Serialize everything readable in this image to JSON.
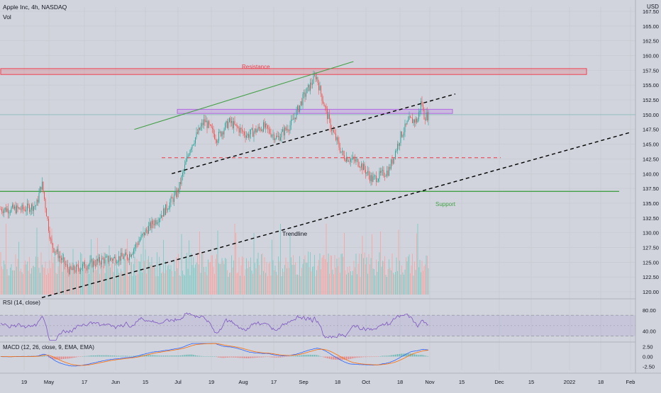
{
  "header": {
    "symbol": "Apple Inc, 4h, NASDAQ",
    "volume_label": "Vol",
    "currency": "USD"
  },
  "colors": {
    "background": "#d1d4dc",
    "up": "#26a69a",
    "down": "#ef5350",
    "volume_up": "#7fcbc4",
    "volume_down": "#f4a6a4",
    "resistance": "#f23645",
    "support": "#43a047",
    "purple_zone": "#b36ae2",
    "rsi_line": "#7e57c2",
    "macd_line": "#2962ff",
    "signal_line": "#ff6d00",
    "trendline": "#000000"
  },
  "annotations": {
    "resistance_label": "Resistance",
    "support_label": "Support",
    "trendline_label": "Trendline"
  },
  "rsi": {
    "label": "RSI (14, close)",
    "ticks": [
      "80.00",
      "40.00"
    ],
    "upper_band": 70,
    "lower_band": 30
  },
  "macd": {
    "label": "MACD (12, 26, close, 9, EMA, EMA)",
    "ticks": [
      "2.50",
      "0.00",
      "-2.50"
    ]
  },
  "chart_data": {
    "type": "candlestick",
    "symbol": "AAPL",
    "timeframe": "4h",
    "ylim": [
      119,
      168
    ],
    "y_ticks": [
      "167.50",
      "165.00",
      "162.50",
      "160.00",
      "157.50",
      "155.00",
      "152.50",
      "150.00",
      "147.50",
      "145.00",
      "142.50",
      "140.00",
      "137.50",
      "135.00",
      "132.50",
      "130.00",
      "127.50",
      "125.00",
      "122.50",
      "120.00"
    ],
    "x_ticks": [
      "19",
      "May",
      "17",
      "Jun",
      "15",
      "Jul",
      "19",
      "Aug",
      "17",
      "Sep",
      "18",
      "Oct",
      "18",
      "Nov",
      "15",
      "Dec",
      "15",
      "2022",
      "18",
      "Feb"
    ],
    "price_anchors": [
      {
        "date": "2021-04-19",
        "close": 134.0
      },
      {
        "date": "2021-04-26",
        "close": 134.7
      },
      {
        "date": "2021-04-29",
        "close": 138.5
      },
      {
        "date": "2021-05-04",
        "close": 128.0
      },
      {
        "date": "2021-05-12",
        "close": 123.5
      },
      {
        "date": "2021-05-19",
        "close": 124.5
      },
      {
        "date": "2021-05-26",
        "close": 125.3
      },
      {
        "date": "2021-06-07",
        "close": 126.0
      },
      {
        "date": "2021-06-16",
        "close": 130.5
      },
      {
        "date": "2021-06-24",
        "close": 133.5
      },
      {
        "date": "2021-07-01",
        "close": 137.0
      },
      {
        "date": "2021-07-07",
        "close": 144.5
      },
      {
        "date": "2021-07-14",
        "close": 149.0
      },
      {
        "date": "2021-07-20",
        "close": 146.0
      },
      {
        "date": "2021-07-26",
        "close": 148.8
      },
      {
        "date": "2021-08-04",
        "close": 146.5
      },
      {
        "date": "2021-08-12",
        "close": 148.0
      },
      {
        "date": "2021-08-19",
        "close": 146.0
      },
      {
        "date": "2021-08-26",
        "close": 148.5
      },
      {
        "date": "2021-09-01",
        "close": 153.0
      },
      {
        "date": "2021-09-07",
        "close": 156.7
      },
      {
        "date": "2021-09-09",
        "close": 154.0
      },
      {
        "date": "2021-09-14",
        "close": 148.0
      },
      {
        "date": "2021-09-20",
        "close": 143.0
      },
      {
        "date": "2021-09-28",
        "close": 141.8
      },
      {
        "date": "2021-10-04",
        "close": 139.0
      },
      {
        "date": "2021-10-12",
        "close": 140.5
      },
      {
        "date": "2021-10-18",
        "close": 146.5
      },
      {
        "date": "2021-10-22",
        "close": 149.0
      },
      {
        "date": "2021-10-26",
        "close": 149.0
      },
      {
        "date": "2021-10-28",
        "close": 152.5
      },
      {
        "date": "2021-10-29",
        "close": 149.8
      }
    ],
    "horizontal_levels": [
      {
        "name": "Resistance",
        "range": [
          156.8,
          157.8
        ]
      },
      {
        "name": "Support",
        "price": 137.0
      },
      {
        "name": "purple zone",
        "range": [
          150.2,
          150.9
        ]
      },
      {
        "name": "red dashed",
        "price": 142.7
      }
    ],
    "drawn_lines": [
      {
        "name": "Trendline",
        "from": {
          "date": "2021-04-29",
          "price": 119.0
        },
        "to": {
          "date": "2022-02-01",
          "price": 147.0
        }
      },
      {
        "name": "black dashed channel",
        "from": {
          "date": "2021-06-28",
          "price": 140.0
        },
        "to": {
          "date": "2021-11-12",
          "price": 153.5
        }
      },
      {
        "name": "green upper",
        "from": {
          "date": "2021-06-10",
          "price": 147.5
        },
        "to": {
          "date": "2021-09-25",
          "price": 159.0
        }
      }
    ],
    "volume_ylim": [
      0,
      1
    ],
    "rsi_ylim": [
      20,
      100
    ],
    "macd_ylim": [
      -3.5,
      3.5
    ],
    "grid": true,
    "legend": "top-left"
  }
}
